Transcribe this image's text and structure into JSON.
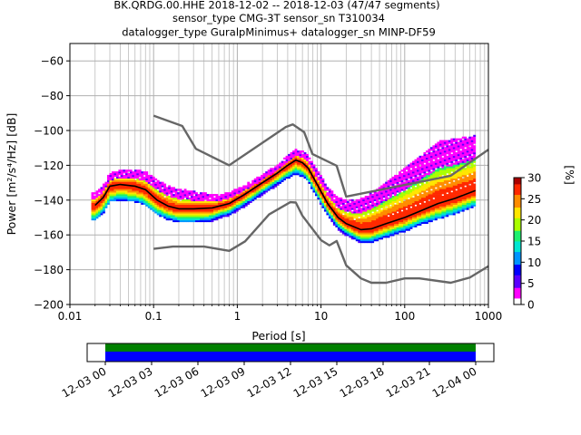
{
  "title_lines": [
    "BK.QRDG.00.HHE   2018-12-02 -- 2018-12-03  (47/47 segments)",
    "sensor_type CMG-3T sensor_sn T310034",
    "datalogger_type GuralpMinimus+ datalogger_sn MINP-DF59"
  ],
  "chart_data": [
    {
      "type": "heatmap",
      "xlabel": "Period [s]",
      "ylabel": "Power [m²/s⁴/Hz] [dB]",
      "xscale": "log",
      "xlim": [
        0.01,
        1000
      ],
      "ylim": [
        -200,
        -50
      ],
      "xticks": [
        {
          "v": 0.01,
          "label": "0.01"
        },
        {
          "v": 0.1,
          "label": "0.1"
        },
        {
          "v": 1,
          "label": "1"
        },
        {
          "v": 10,
          "label": "10"
        },
        {
          "v": 100,
          "label": "100"
        },
        {
          "v": 1000,
          "label": "1000"
        }
      ],
      "yticks": [
        -60,
        -80,
        -100,
        -120,
        -140,
        -160,
        -180,
        -200
      ],
      "grid": true,
      "colorbar": {
        "label": "[%]",
        "range": [
          0,
          30
        ],
        "ticks": [
          0,
          5,
          10,
          15,
          20,
          25,
          30
        ],
        "colors": [
          "#ffffff",
          "#ff00ff",
          "#5a00ff",
          "#0000ff",
          "#0094ff",
          "#00e6d2",
          "#1ef06e",
          "#aaff00",
          "#ffe600",
          "#ff8c00",
          "#ff2800",
          "#aa0000"
        ]
      },
      "series": [
        {
          "role": "model-high",
          "color": "#666666",
          "points": [
            [
              0.1,
              -91.5
            ],
            [
              0.22,
              -97.4
            ],
            [
              0.32,
              -110.5
            ],
            [
              0.8,
              -120.0
            ],
            [
              3.8,
              -98.0
            ],
            [
              4.6,
              -96.5
            ],
            [
              6.3,
              -101.0
            ],
            [
              7.9,
              -113.5
            ],
            [
              15.4,
              -120.3
            ],
            [
              20.0,
              -138.0
            ],
            [
              354.8,
              -126.0
            ],
            [
              1000,
              -111.0
            ]
          ]
        },
        {
          "role": "model-low",
          "color": "#666666",
          "points": [
            [
              0.1,
              -168.0
            ],
            [
              0.17,
              -166.7
            ],
            [
              0.4,
              -166.7
            ],
            [
              0.8,
              -169.2
            ],
            [
              1.24,
              -163.7
            ],
            [
              2.4,
              -148.2
            ],
            [
              4.3,
              -141.2
            ],
            [
              5.0,
              -141.4
            ],
            [
              6.0,
              -149.0
            ],
            [
              10.0,
              -163.0
            ],
            [
              12.6,
              -166.0
            ],
            [
              15.4,
              -163.5
            ],
            [
              20.0,
              -177.5
            ],
            [
              30.0,
              -185.0
            ],
            [
              40.0,
              -187.5
            ],
            [
              60.0,
              -187.5
            ],
            [
              100.0,
              -185.0
            ],
            [
              150.0,
              -185.0
            ],
            [
              354.8,
              -187.5
            ],
            [
              600.0,
              -184.5
            ],
            [
              1000,
              -178.0
            ]
          ]
        },
        {
          "role": "mode",
          "color": "#000000",
          "points": [
            [
              0.02,
              -143.0
            ],
            [
              0.025,
              -138.5
            ],
            [
              0.03,
              -132.0
            ],
            [
              0.04,
              -131.0
            ],
            [
              0.06,
              -132.0
            ],
            [
              0.08,
              -134.0
            ],
            [
              0.11,
              -140.0
            ],
            [
              0.15,
              -143.5
            ],
            [
              0.2,
              -145.0
            ],
            [
              0.3,
              -145.0
            ],
            [
              0.5,
              -144.5
            ],
            [
              0.8,
              -142.0
            ],
            [
              1.2,
              -137.0
            ],
            [
              2.0,
              -130.0
            ],
            [
              3.0,
              -124.5
            ],
            [
              4.0,
              -120.0
            ],
            [
              5.0,
              -117.0
            ],
            [
              6.0,
              -118.5
            ],
            [
              7.0,
              -121.5
            ],
            [
              9.0,
              -131.0
            ],
            [
              12.0,
              -142.0
            ],
            [
              16.0,
              -150.0
            ],
            [
              20.0,
              -153.5
            ],
            [
              30.0,
              -157.0
            ],
            [
              40.0,
              -156.5
            ],
            [
              60.0,
              -153.5
            ],
            [
              100.0,
              -150.0
            ],
            [
              150.0,
              -146.5
            ],
            [
              250.0,
              -142.0
            ],
            [
              400.0,
              -139.0
            ],
            [
              700.0,
              -134.5
            ]
          ]
        }
      ],
      "density": {
        "spread_below_db": [
          5,
          5,
          5,
          5,
          4,
          4,
          4,
          3,
          3,
          3,
          3,
          4,
          4,
          3,
          3,
          4,
          4,
          4,
          4,
          5,
          5,
          5
        ],
        "spread_above_db": [
          5,
          6,
          7,
          9,
          10,
          9,
          7,
          5,
          4,
          3,
          3,
          4,
          6,
          8,
          12,
          18,
          22,
          26,
          30,
          34,
          32,
          30
        ]
      }
    },
    {
      "type": "timeline",
      "x_ticks": [
        "12-03 00",
        "12-03 03",
        "12-03 06",
        "12-03 09",
        "12-03 12",
        "12-03 15",
        "12-03 18",
        "12-03 21",
        "12-04 00"
      ],
      "coverage": [
        {
          "row": "top",
          "color": "#008000",
          "start_fraction": 0.0,
          "end_fraction": 1.0
        },
        {
          "row": "bottom",
          "color": "#0000ff",
          "start_fraction": 0.0,
          "end_fraction": 1.0
        }
      ]
    }
  ]
}
